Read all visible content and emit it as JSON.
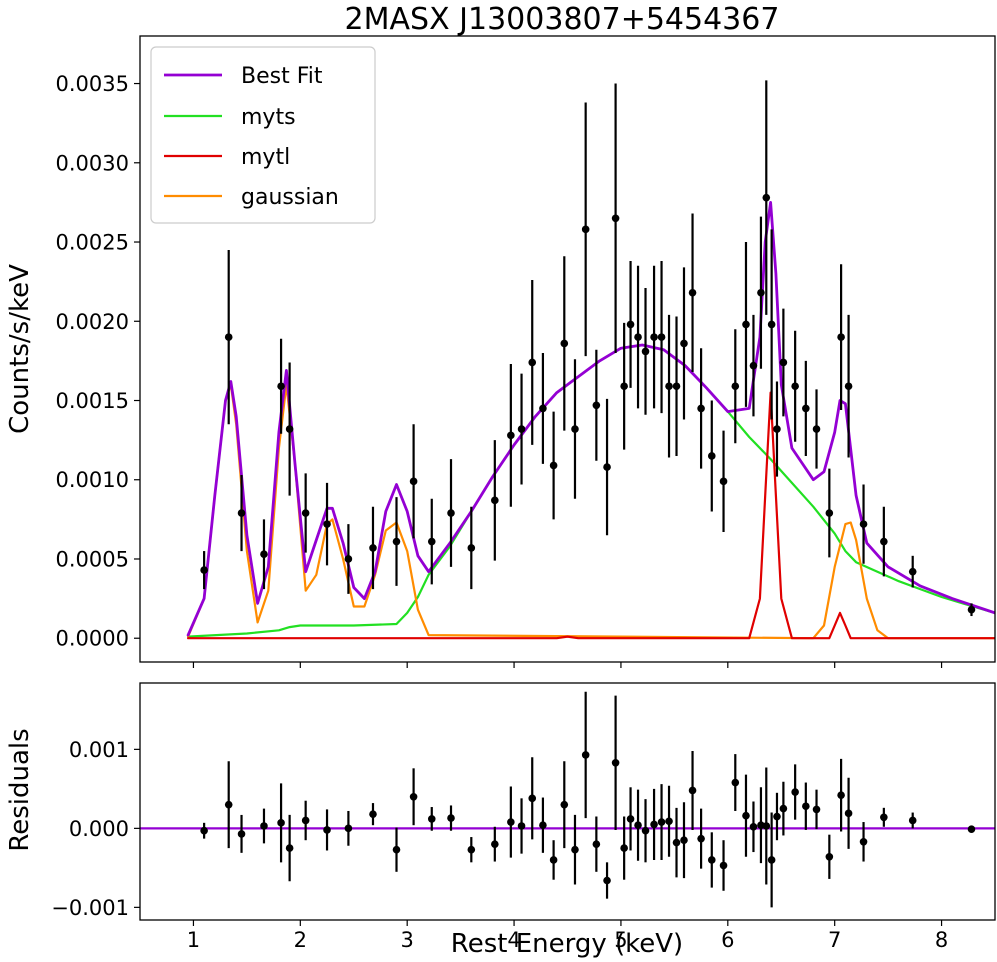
{
  "chart_data": [
    {
      "panel": "spectrum",
      "type": "line",
      "title": "2MASX J13003807+5454367",
      "ylabel": "Counts/s/keV",
      "xlabel": "Rest Energy (keV)",
      "xlim": [
        0.5,
        8.5
      ],
      "ylim": [
        -0.00015,
        0.0038
      ],
      "xticks": [
        "1",
        "2",
        "3",
        "4",
        "5",
        "6",
        "7",
        "8"
      ],
      "yticks": [
        "0.0000",
        "0.0005",
        "0.0010",
        "0.0015",
        "0.0020",
        "0.0025",
        "0.0030",
        "0.0035"
      ],
      "legend": {
        "placement": "top-left",
        "entries": [
          "Best Fit",
          "myts",
          "mytl",
          "gaussian"
        ]
      },
      "colors": {
        "best_fit": "#9400d3",
        "myts": "#22e022",
        "mytl": "#e00000",
        "gaussian": "#ff8c00",
        "data": "#000000"
      },
      "series": [
        {
          "name": "Best Fit",
          "color": "#9400d3",
          "x": [
            0.95,
            1.1,
            1.2,
            1.3,
            1.35,
            1.4,
            1.5,
            1.6,
            1.7,
            1.8,
            1.87,
            1.95,
            2.05,
            2.15,
            2.25,
            2.3,
            2.4,
            2.5,
            2.6,
            2.7,
            2.8,
            2.9,
            3.0,
            3.1,
            3.2,
            3.4,
            3.6,
            3.8,
            4.0,
            4.2,
            4.4,
            4.6,
            4.8,
            5.0,
            5.2,
            5.4,
            5.6,
            5.8,
            6.0,
            6.2,
            6.3,
            6.35,
            6.4,
            6.45,
            6.5,
            6.6,
            6.7,
            6.8,
            6.9,
            7.0,
            7.05,
            7.1,
            7.2,
            7.3,
            7.5,
            7.8,
            8.1,
            8.5
          ],
          "y": [
            2e-05,
            0.00025,
            0.0009,
            0.0015,
            0.00162,
            0.0014,
            0.00065,
            0.00022,
            0.00045,
            0.0013,
            0.00169,
            0.0011,
            0.00042,
            0.00062,
            0.00082,
            0.00082,
            0.0006,
            0.00032,
            0.00025,
            0.00042,
            0.0008,
            0.00097,
            0.0008,
            0.00052,
            0.00042,
            0.0006,
            0.0008,
            0.00102,
            0.00122,
            0.0014,
            0.00155,
            0.00165,
            0.00175,
            0.00183,
            0.00185,
            0.00182,
            0.00172,
            0.00158,
            0.00143,
            0.00145,
            0.0019,
            0.0025,
            0.00275,
            0.0023,
            0.0016,
            0.0012,
            0.0011,
            0.001,
            0.00105,
            0.0013,
            0.0015,
            0.00148,
            0.0009,
            0.0006,
            0.00045,
            0.00033,
            0.00025,
            0.00016
          ]
        },
        {
          "name": "myts",
          "color": "#22e022",
          "x": [
            0.95,
            1.5,
            1.8,
            1.9,
            2.0,
            2.5,
            2.9,
            3.0,
            3.1,
            3.2,
            3.4,
            3.6,
            3.8,
            4.0,
            4.2,
            4.4,
            4.6,
            4.8,
            5.0,
            5.2,
            5.4,
            5.6,
            5.8,
            6.0,
            6.2,
            6.4,
            6.6,
            6.8,
            7.0,
            7.1,
            7.2,
            7.4,
            7.6,
            7.8,
            8.0,
            8.2,
            8.5
          ],
          "y": [
            1e-05,
            3e-05,
            5e-05,
            7e-05,
            8e-05,
            8e-05,
            9e-05,
            0.00016,
            0.00026,
            0.0004,
            0.00058,
            0.0008,
            0.00102,
            0.00122,
            0.0014,
            0.00155,
            0.00165,
            0.00175,
            0.00183,
            0.00185,
            0.00182,
            0.00172,
            0.00158,
            0.00143,
            0.00127,
            0.00113,
            0.00098,
            0.00083,
            0.00066,
            0.00055,
            0.00048,
            0.00042,
            0.00036,
            0.00031,
            0.00026,
            0.00022,
            0.00016
          ]
        },
        {
          "name": "mytl",
          "color": "#e00000",
          "x": [
            0.95,
            4.4,
            4.5,
            4.6,
            6.2,
            6.3,
            6.35,
            6.4,
            6.45,
            6.5,
            6.6,
            6.95,
            7.0,
            7.05,
            7.1,
            7.15,
            8.5
          ],
          "y": [
            0,
            0,
            1e-05,
            0,
            0,
            0.00025,
            0.0009,
            0.00155,
            0.0009,
            0.00025,
            0,
            0,
            8e-05,
            0.00016,
            8e-05,
            0,
            0
          ]
        },
        {
          "name": "gaussian",
          "color": "#ff8c00",
          "x": [
            0.95,
            1.1,
            1.2,
            1.3,
            1.35,
            1.4,
            1.5,
            1.6,
            1.7,
            1.8,
            1.87,
            1.95,
            2.05,
            2.15,
            2.25,
            2.3,
            2.4,
            2.5,
            2.6,
            2.7,
            2.8,
            2.9,
            3.0,
            3.1,
            3.2,
            6.8,
            6.9,
            7.0,
            7.1,
            7.15,
            7.2,
            7.3,
            7.4,
            7.5,
            8.5
          ],
          "y": [
            1e-05,
            0.00025,
            0.0009,
            0.0015,
            0.0016,
            0.00135,
            0.00055,
            0.0001,
            0.0003,
            0.0012,
            0.0016,
            0.0011,
            0.0003,
            0.0004,
            0.00072,
            0.00075,
            0.0005,
            0.0002,
            0.0002,
            0.0004,
            0.00068,
            0.00073,
            0.00055,
            0.00018,
            2e-05,
            0,
            8e-05,
            0.00045,
            0.00072,
            0.00073,
            0.00062,
            0.00025,
            5e-05,
            0,
            0
          ]
        }
      ],
      "data": {
        "x": [
          1.1,
          1.33,
          1.45,
          1.66,
          1.82,
          1.9,
          2.05,
          2.25,
          2.45,
          2.68,
          2.9,
          3.06,
          3.23,
          3.41,
          3.6,
          3.82,
          3.97,
          4.07,
          4.17,
          4.27,
          4.37,
          4.47,
          4.57,
          4.67,
          4.77,
          4.87,
          4.95,
          5.03,
          5.09,
          5.16,
          5.23,
          5.31,
          5.38,
          5.45,
          5.52,
          5.59,
          5.67,
          5.75,
          5.85,
          5.96,
          6.07,
          6.17,
          6.24,
          6.31,
          6.36,
          6.41,
          6.46,
          6.52,
          6.63,
          6.73,
          6.83,
          6.95,
          7.06,
          7.13,
          7.27,
          7.46,
          7.73,
          8.28
        ],
        "y": [
          0.00043,
          0.0019,
          0.00079,
          0.00053,
          0.00159,
          0.00132,
          0.00079,
          0.00072,
          0.0005,
          0.00057,
          0.00061,
          0.00099,
          0.00061,
          0.00079,
          0.00057,
          0.00087,
          0.00128,
          0.00132,
          0.00174,
          0.00145,
          0.00109,
          0.00186,
          0.00132,
          0.00258,
          0.00147,
          0.00108,
          0.00265,
          0.00159,
          0.00198,
          0.0019,
          0.00181,
          0.0019,
          0.0019,
          0.00159,
          0.00159,
          0.00186,
          0.00218,
          0.00145,
          0.00115,
          0.00099,
          0.00159,
          0.00198,
          0.00172,
          0.00218,
          0.00278,
          0.00198,
          0.00132,
          0.00174,
          0.00159,
          0.00145,
          0.00132,
          0.00079,
          0.0019,
          0.00159,
          0.00072,
          0.00061,
          0.00042,
          0.00018
        ],
        "yerr": [
          0.00012,
          0.00055,
          0.00024,
          0.00022,
          0.0003,
          0.00042,
          0.00025,
          0.00026,
          0.00022,
          0.00026,
          0.00028,
          0.00036,
          0.00027,
          0.00034,
          0.00026,
          0.00038,
          0.00045,
          0.00035,
          0.00052,
          0.00035,
          0.00034,
          0.00055,
          0.00044,
          0.0008,
          0.00035,
          0.00043,
          0.00085,
          0.0004,
          0.0004,
          0.00045,
          0.0004,
          0.00045,
          0.00048,
          0.00045,
          0.00044,
          0.00048,
          0.0005,
          0.00038,
          0.00035,
          0.00032,
          0.00036,
          0.00052,
          0.00032,
          0.00048,
          0.00074,
          0.0006,
          0.0003,
          0.00034,
          0.00035,
          0.0003,
          0.00025,
          0.00028,
          0.00046,
          0.00045,
          0.00025,
          0.00022,
          0.0001,
          4e-05
        ]
      }
    },
    {
      "panel": "residuals",
      "type": "scatter",
      "ylabel": "Residuals",
      "xlabel": "Rest Energy (keV)",
      "xlim": [
        0.5,
        8.5
      ],
      "ylim": [
        -0.00116,
        0.00184
      ],
      "xticks": [
        "1",
        "2",
        "3",
        "4",
        "5",
        "6",
        "7",
        "8"
      ],
      "yticks": [
        "−0.001",
        "0.000",
        "0.001"
      ],
      "zero_line_color": "#9400d3",
      "data": {
        "x": [
          1.1,
          1.33,
          1.45,
          1.66,
          1.82,
          1.9,
          2.05,
          2.25,
          2.45,
          2.68,
          2.9,
          3.06,
          3.23,
          3.41,
          3.6,
          3.82,
          3.97,
          4.07,
          4.17,
          4.27,
          4.37,
          4.47,
          4.57,
          4.67,
          4.77,
          4.87,
          4.95,
          5.03,
          5.09,
          5.16,
          5.23,
          5.31,
          5.38,
          5.45,
          5.52,
          5.59,
          5.67,
          5.75,
          5.85,
          5.96,
          6.07,
          6.17,
          6.24,
          6.31,
          6.36,
          6.41,
          6.46,
          6.52,
          6.63,
          6.73,
          6.83,
          6.95,
          7.06,
          7.13,
          7.27,
          7.46,
          7.73,
          8.28
        ],
        "y": [
          -3e-05,
          0.0003,
          -7e-05,
          3e-05,
          7e-05,
          -0.00025,
          0.0001,
          -2e-05,
          0,
          0.00018,
          -0.00027,
          0.0004,
          0.00012,
          0.00013,
          -0.00027,
          -0.0002,
          8e-05,
          3e-05,
          0.00038,
          4e-05,
          -0.0004,
          0.0003,
          -0.00027,
          0.00093,
          -0.0002,
          -0.00066,
          0.00083,
          -0.00025,
          0.00012,
          4e-05,
          -3e-05,
          5e-05,
          8e-05,
          9e-05,
          -0.00018,
          -0.00015,
          0.00048,
          -0.00013,
          -0.0004,
          -0.00047,
          0.00058,
          0.00016,
          2e-05,
          4e-05,
          3e-05,
          -0.0004,
          0.00015,
          0.00025,
          0.00046,
          0.00028,
          0.00024,
          -0.00036,
          0.00042,
          0.00019,
          -0.00017,
          0.00014,
          0.0001,
          -1e-05
        ],
        "yerr": [
          0.0001,
          0.00055,
          0.00024,
          0.00022,
          0.0005,
          0.00042,
          0.00025,
          0.00026,
          0.00022,
          0.00014,
          0.00028,
          0.00036,
          0.00015,
          0.00016,
          0.00016,
          0.00022,
          0.00045,
          0.00035,
          0.00052,
          0.00035,
          0.00025,
          0.00055,
          0.00044,
          0.0008,
          0.00035,
          0.00023,
          0.00085,
          0.0004,
          0.0004,
          0.00045,
          0.0004,
          0.00045,
          0.00048,
          0.00045,
          0.00044,
          0.00048,
          0.0005,
          0.00038,
          0.00035,
          0.00032,
          0.00036,
          0.00052,
          0.00032,
          0.00048,
          0.00074,
          0.0006,
          0.0003,
          0.00034,
          0.00035,
          0.0003,
          0.00025,
          0.00028,
          0.00046,
          0.00045,
          0.00025,
          0.00012,
          0.0001,
          4e-05
        ]
      }
    }
  ]
}
